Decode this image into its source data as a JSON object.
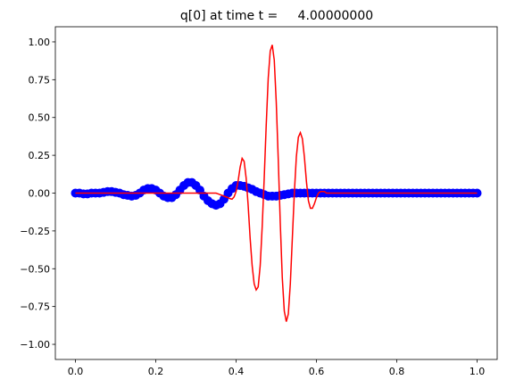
{
  "chart_data": {
    "type": "line",
    "title": "q[0] at time t =     4.00000000",
    "xlim": [
      -0.05,
      1.05
    ],
    "ylim": [
      -1.1,
      1.1
    ],
    "xticks": [
      {
        "value": 0,
        "label": "0.0"
      },
      {
        "value": 0.2,
        "label": "0.2"
      },
      {
        "value": 0.4,
        "label": "0.4"
      },
      {
        "value": 0.6,
        "label": "0.6"
      },
      {
        "value": 0.8,
        "label": "0.8"
      },
      {
        "value": 1,
        "label": "1.0"
      }
    ],
    "yticks": [
      {
        "value": -1,
        "label": "−1.00"
      },
      {
        "value": -0.75,
        "label": "−0.75"
      },
      {
        "value": -0.5,
        "label": "−0.50"
      },
      {
        "value": -0.25,
        "label": "−0.25"
      },
      {
        "value": 0,
        "label": "0.00"
      },
      {
        "value": 0.25,
        "label": "0.25"
      },
      {
        "value": 0.5,
        "label": "0.50"
      },
      {
        "value": 0.75,
        "label": "0.75"
      },
      {
        "value": 1,
        "label": "1.00"
      }
    ],
    "series": [
      {
        "color": "blue",
        "marker": "o",
        "x": [
          0,
          0.01,
          0.02,
          0.03,
          0.04,
          0.05,
          0.06,
          0.07,
          0.08,
          0.09,
          0.1,
          0.11,
          0.12,
          0.13,
          0.14,
          0.15,
          0.16,
          0.17,
          0.18,
          0.19,
          0.2,
          0.21,
          0.22,
          0.23,
          0.24,
          0.25,
          0.26,
          0.27,
          0.28,
          0.29,
          0.3,
          0.31,
          0.32,
          0.33,
          0.34,
          0.35,
          0.36,
          0.37,
          0.38,
          0.39,
          0.4,
          0.41,
          0.42,
          0.43,
          0.44,
          0.45,
          0.46,
          0.47,
          0.48,
          0.49,
          0.5,
          0.51,
          0.52,
          0.53,
          0.54,
          0.55,
          0.56,
          0.57,
          0.58,
          0.59,
          0.6,
          0.61,
          0.62,
          0.63,
          0.64,
          0.65,
          0.66,
          0.67,
          0.68,
          0.69,
          0.7,
          0.71,
          0.72,
          0.73,
          0.74,
          0.75,
          0.76,
          0.77,
          0.78,
          0.79,
          0.8,
          0.81,
          0.82,
          0.83,
          0.84,
          0.85,
          0.86,
          0.87,
          0.88,
          0.89,
          0.9,
          0.91,
          0.92,
          0.93,
          0.94,
          0.95,
          0.96,
          0.97,
          0.98,
          0.99,
          1
        ],
        "values": [
          0,
          0,
          -0.005,
          -0.005,
          0,
          0,
          0,
          0.005,
          0.01,
          0.01,
          0.005,
          0,
          -0.01,
          -0.015,
          -0.02,
          -0.015,
          0,
          0.02,
          0.03,
          0.03,
          0.02,
          0,
          -0.02,
          -0.03,
          -0.03,
          -0.01,
          0.02,
          0.05,
          0.07,
          0.07,
          0.05,
          0.02,
          -0.02,
          -0.05,
          -0.07,
          -0.08,
          -0.07,
          -0.04,
          0,
          0.03,
          0.05,
          0.05,
          0.045,
          0.035,
          0.025,
          0.01,
          0,
          -0.01,
          -0.02,
          -0.02,
          -0.02,
          -0.015,
          -0.01,
          -0.005,
          0,
          0,
          0,
          0,
          0,
          0,
          0,
          0,
          0,
          0,
          0,
          0,
          0,
          0,
          0,
          0,
          0,
          0,
          0,
          0,
          0,
          0,
          0,
          0,
          0,
          0,
          0,
          0,
          0,
          0,
          0,
          0,
          0,
          0,
          0,
          0,
          0,
          0,
          0,
          0,
          0,
          0,
          0,
          0,
          0,
          0,
          0
        ]
      },
      {
        "color": "red",
        "x": [
          0,
          0.05,
          0.1,
          0.15,
          0.2,
          0.25,
          0.3,
          0.35,
          0.355,
          0.36,
          0.365,
          0.37,
          0.375,
          0.38,
          0.385,
          0.39,
          0.395,
          0.4,
          0.405,
          0.41,
          0.415,
          0.42,
          0.425,
          0.43,
          0.435,
          0.44,
          0.445,
          0.45,
          0.455,
          0.46,
          0.465,
          0.47,
          0.475,
          0.48,
          0.485,
          0.49,
          0.495,
          0.5,
          0.505,
          0.51,
          0.515,
          0.52,
          0.525,
          0.53,
          0.535,
          0.54,
          0.545,
          0.55,
          0.555,
          0.56,
          0.565,
          0.57,
          0.575,
          0.58,
          0.585,
          0.59,
          0.595,
          0.6,
          0.605,
          0.61,
          0.615,
          0.62,
          0.625,
          0.65,
          0.7,
          0.75,
          0.8,
          0.85,
          0.9,
          0.95,
          1
        ],
        "values": [
          0,
          0,
          0,
          0,
          0,
          0,
          0,
          0,
          -0.005,
          -0.01,
          -0.015,
          -0.02,
          -0.025,
          -0.03,
          -0.037,
          -0.04,
          -0.025,
          0.01,
          0.08,
          0.17,
          0.23,
          0.21,
          0.1,
          -0.08,
          -0.3,
          -0.48,
          -0.6,
          -0.64,
          -0.62,
          -0.48,
          -0.22,
          0.1,
          0.45,
          0.76,
          0.94,
          0.98,
          0.88,
          0.6,
          0.22,
          -0.2,
          -0.56,
          -0.78,
          -0.85,
          -0.8,
          -0.6,
          -0.3,
          0,
          0.24,
          0.37,
          0.4,
          0.36,
          0.24,
          0.08,
          -0.05,
          -0.1,
          -0.1,
          -0.07,
          -0.03,
          0,
          0.01,
          0.01,
          0.01,
          0,
          0,
          0,
          0,
          0,
          0,
          0,
          0,
          0
        ]
      }
    ]
  }
}
